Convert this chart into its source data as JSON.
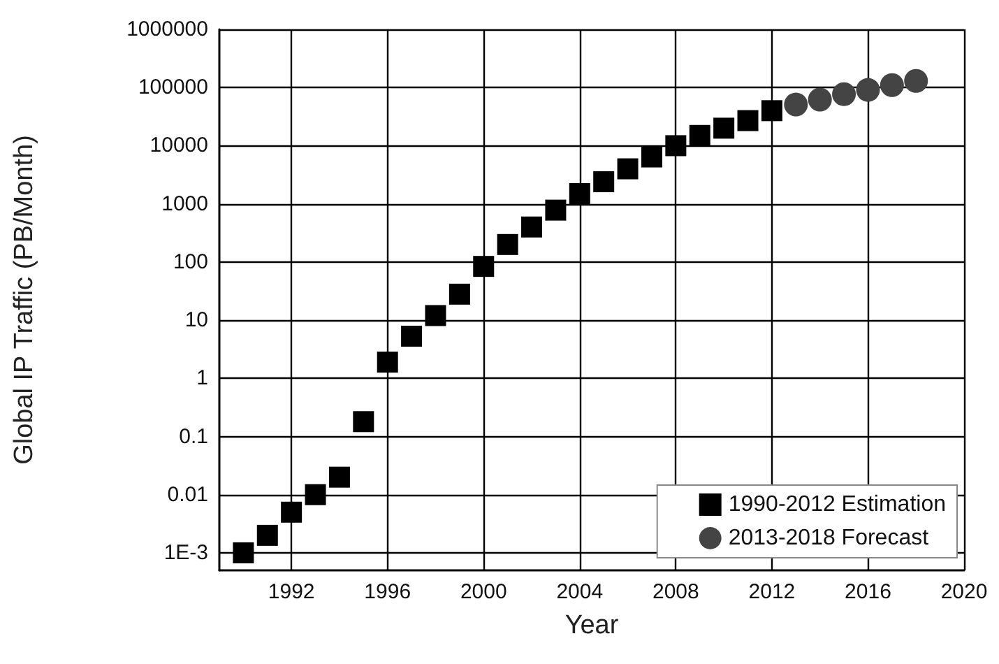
{
  "chart_data": {
    "type": "scatter",
    "xlabel": "Year",
    "ylabel": "Global IP Traffic (PB/Month)",
    "log": "y",
    "grid": true,
    "legend": "bottom right",
    "xlim": [
      1989,
      2020
    ],
    "xticks": [
      1992,
      1996,
      2000,
      2004,
      2008,
      2012,
      2016,
      2020
    ],
    "ylim": [
      0.0005,
      1000000
    ],
    "yticks": [
      {
        "value": 0.001,
        "label": "1E-3"
      },
      0.01,
      0.1,
      1,
      10,
      100,
      1000,
      10000,
      100000,
      1000000
    ],
    "series": [
      {
        "name": "1990-2012 Estimation",
        "color": "#000000",
        "marker": "square",
        "x": [
          1990,
          1991,
          1992,
          1993,
          1994,
          1995,
          1996,
          1997,
          1998,
          1999,
          2000,
          2001,
          2002,
          2003,
          2004,
          2005,
          2006,
          2007,
          2008,
          2009,
          2010,
          2011,
          2012
        ],
        "values": [
          0.001,
          0.002,
          0.005,
          0.01,
          0.02,
          0.18,
          1.9,
          5.3,
          12,
          28,
          84,
          200,
          400,
          780,
          1500,
          2400,
          4000,
          6400,
          10000,
          15000,
          20000,
          27000,
          40000
        ]
      },
      {
        "name": "2013-2018 Forecast",
        "color": "#444444",
        "marker": "circle",
        "x": [
          2013,
          2014,
          2015,
          2016,
          2017,
          2018
        ],
        "values": [
          51000,
          62000,
          77000,
          91000,
          110000,
          130000
        ]
      }
    ]
  }
}
